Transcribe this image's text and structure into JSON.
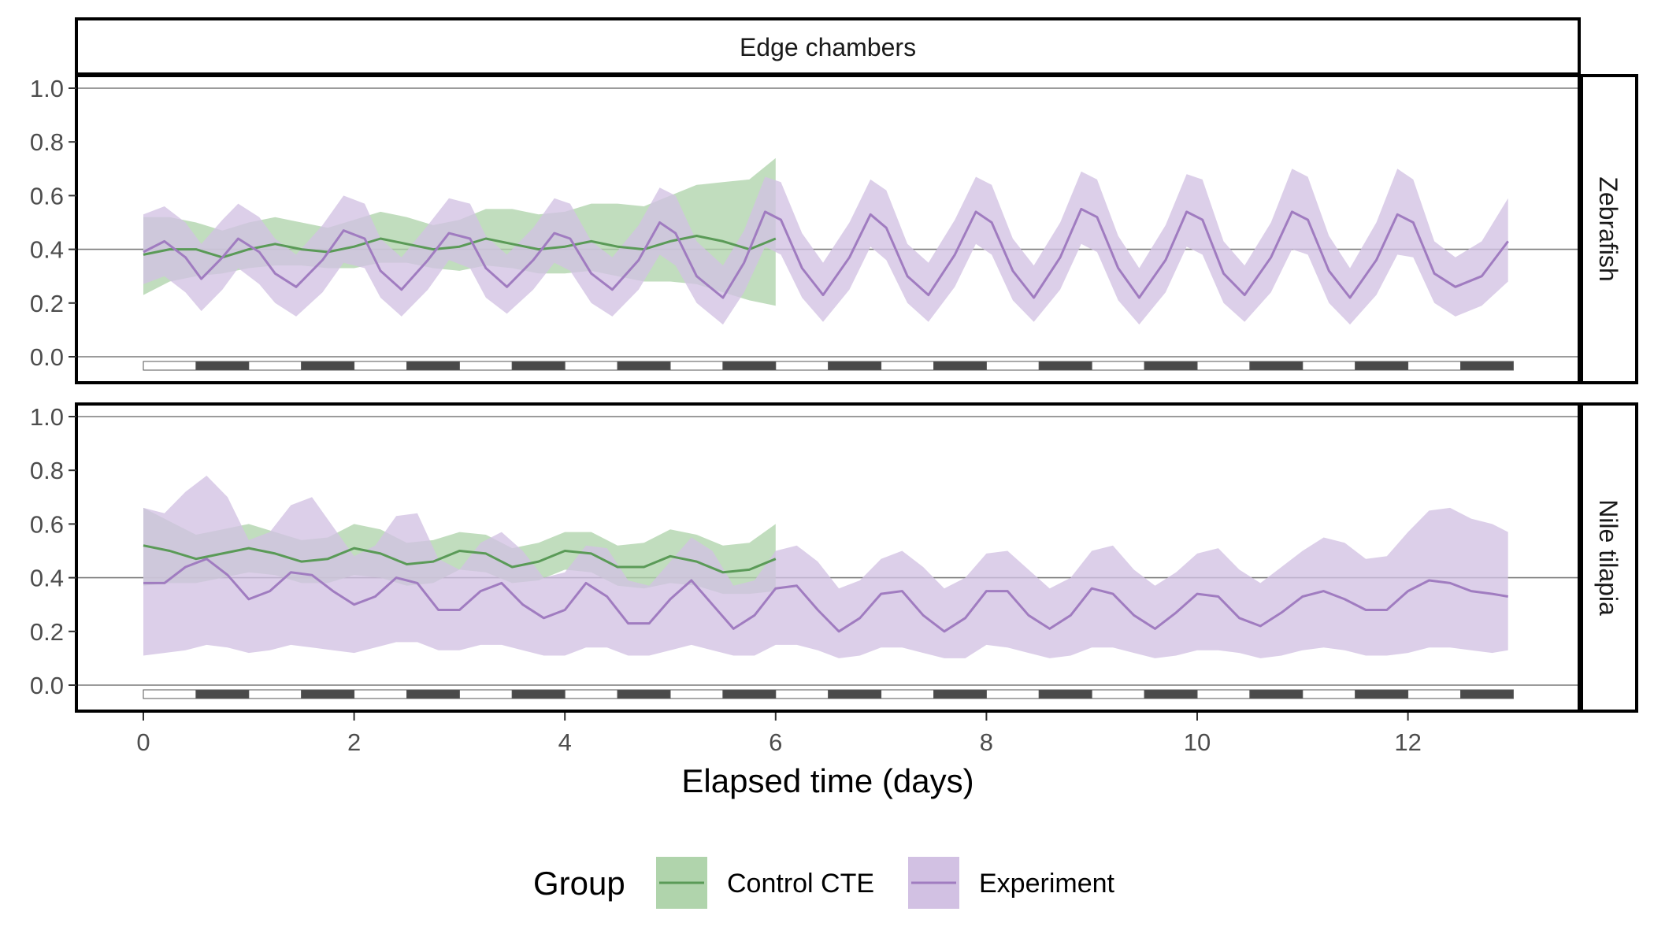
{
  "chart_data": {
    "type": "area",
    "title": "Edge chambers",
    "xlabel": "Elapsed time (days)",
    "ylabel": "",
    "xlim": [
      0,
      13
    ],
    "ylim": [
      0,
      1
    ],
    "x_ticks": [
      "0",
      "2",
      "4",
      "6",
      "8",
      "10",
      "12"
    ],
    "y_ticks": [
      "0.0",
      "0.2",
      "0.4",
      "0.6",
      "0.8",
      "1.0"
    ],
    "grid": "horizontal reference lines at 0.0, 0.4 and 1.0",
    "light_dark_bar": {
      "start_day": 0,
      "end_day": 13,
      "phase_length_days": 0.5,
      "first_phase": "light"
    },
    "legend": {
      "title": "Group",
      "position": "bottom",
      "entries": [
        {
          "label": "Control CTE",
          "line_color": "#5a9a57",
          "fill_color": "#b0d4ac"
        },
        {
          "label": "Experiment",
          "line_color": "#a07cc0",
          "fill_color": "#d2c1e3"
        }
      ]
    },
    "panels": [
      {
        "facet": "Zebrafish",
        "series": [
          {
            "name": "Control CTE",
            "x": [
              0,
              0.25,
              0.5,
              0.75,
              1.0,
              1.25,
              1.5,
              1.75,
              2.0,
              2.25,
              2.5,
              2.75,
              3.0,
              3.25,
              3.5,
              3.75,
              4.0,
              4.25,
              4.5,
              4.75,
              5.0,
              5.25,
              5.5,
              5.75,
              6.0
            ],
            "y": [
              0.38,
              0.4,
              0.4,
              0.37,
              0.4,
              0.42,
              0.4,
              0.39,
              0.41,
              0.44,
              0.42,
              0.4,
              0.41,
              0.44,
              0.42,
              0.4,
              0.41,
              0.43,
              0.41,
              0.4,
              0.43,
              0.45,
              0.43,
              0.4,
              0.44
            ],
            "lower": [
              0.23,
              0.28,
              0.3,
              0.31,
              0.33,
              0.34,
              0.34,
              0.33,
              0.33,
              0.35,
              0.35,
              0.33,
              0.32,
              0.34,
              0.33,
              0.31,
              0.31,
              0.32,
              0.3,
              0.28,
              0.28,
              0.27,
              0.24,
              0.21,
              0.19
            ],
            "upper": [
              0.52,
              0.52,
              0.5,
              0.47,
              0.5,
              0.52,
              0.5,
              0.48,
              0.51,
              0.54,
              0.52,
              0.49,
              0.51,
              0.55,
              0.55,
              0.53,
              0.54,
              0.57,
              0.57,
              0.56,
              0.6,
              0.64,
              0.65,
              0.66,
              0.74
            ]
          },
          {
            "name": "Experiment",
            "x": [
              0,
              0.2,
              0.4,
              0.55,
              0.75,
              0.9,
              1.1,
              1.25,
              1.45,
              1.7,
              1.9,
              2.1,
              2.25,
              2.45,
              2.7,
              2.9,
              3.1,
              3.25,
              3.45,
              3.7,
              3.9,
              4.05,
              4.25,
              4.45,
              4.7,
              4.9,
              5.05,
              5.25,
              5.5,
              5.7,
              5.9,
              6.05,
              6.25,
              6.45,
              6.7,
              6.9,
              7.05,
              7.25,
              7.45,
              7.7,
              7.9,
              8.05,
              8.25,
              8.45,
              8.7,
              8.9,
              9.05,
              9.25,
              9.45,
              9.7,
              9.9,
              10.05,
              10.25,
              10.45,
              10.7,
              10.9,
              11.05,
              11.25,
              11.45,
              11.7,
              11.9,
              12.05,
              12.25,
              12.45,
              12.7,
              12.95
            ],
            "y": [
              0.39,
              0.43,
              0.37,
              0.29,
              0.37,
              0.44,
              0.39,
              0.31,
              0.26,
              0.36,
              0.47,
              0.44,
              0.32,
              0.25,
              0.36,
              0.46,
              0.44,
              0.33,
              0.26,
              0.36,
              0.46,
              0.44,
              0.31,
              0.25,
              0.36,
              0.5,
              0.46,
              0.3,
              0.22,
              0.35,
              0.54,
              0.51,
              0.33,
              0.23,
              0.37,
              0.53,
              0.48,
              0.3,
              0.23,
              0.38,
              0.54,
              0.5,
              0.32,
              0.22,
              0.37,
              0.55,
              0.52,
              0.33,
              0.22,
              0.36,
              0.54,
              0.51,
              0.31,
              0.23,
              0.37,
              0.54,
              0.51,
              0.32,
              0.22,
              0.36,
              0.53,
              0.5,
              0.31,
              0.26,
              0.3,
              0.43
            ],
            "lower": [
              0.27,
              0.3,
              0.24,
              0.17,
              0.25,
              0.33,
              0.27,
              0.2,
              0.15,
              0.24,
              0.35,
              0.33,
              0.22,
              0.15,
              0.25,
              0.36,
              0.33,
              0.22,
              0.16,
              0.25,
              0.35,
              0.32,
              0.2,
              0.15,
              0.25,
              0.38,
              0.34,
              0.2,
              0.12,
              0.24,
              0.41,
              0.38,
              0.22,
              0.13,
              0.25,
              0.41,
              0.36,
              0.2,
              0.13,
              0.26,
              0.42,
              0.38,
              0.21,
              0.13,
              0.25,
              0.42,
              0.39,
              0.21,
              0.12,
              0.24,
              0.41,
              0.38,
              0.2,
              0.13,
              0.24,
              0.4,
              0.38,
              0.2,
              0.12,
              0.23,
              0.38,
              0.37,
              0.2,
              0.15,
              0.19,
              0.28
            ],
            "upper": [
              0.53,
              0.56,
              0.5,
              0.42,
              0.51,
              0.57,
              0.52,
              0.44,
              0.38,
              0.49,
              0.6,
              0.57,
              0.44,
              0.37,
              0.49,
              0.59,
              0.57,
              0.45,
              0.38,
              0.48,
              0.59,
              0.57,
              0.43,
              0.37,
              0.49,
              0.63,
              0.6,
              0.43,
              0.34,
              0.47,
              0.67,
              0.65,
              0.46,
              0.35,
              0.5,
              0.66,
              0.62,
              0.42,
              0.35,
              0.51,
              0.67,
              0.64,
              0.44,
              0.34,
              0.5,
              0.69,
              0.66,
              0.45,
              0.33,
              0.49,
              0.68,
              0.66,
              0.43,
              0.34,
              0.5,
              0.7,
              0.67,
              0.45,
              0.33,
              0.5,
              0.7,
              0.66,
              0.43,
              0.37,
              0.43,
              0.59
            ]
          }
        ]
      },
      {
        "facet": "Nile tilapia",
        "series": [
          {
            "name": "Control CTE",
            "x": [
              0,
              0.25,
              0.5,
              0.75,
              1.0,
              1.25,
              1.5,
              1.75,
              2.0,
              2.25,
              2.5,
              2.75,
              3.0,
              3.25,
              3.5,
              3.75,
              4.0,
              4.25,
              4.5,
              4.75,
              5.0,
              5.25,
              5.5,
              5.75,
              6.0
            ],
            "y": [
              0.52,
              0.5,
              0.47,
              0.49,
              0.51,
              0.49,
              0.46,
              0.47,
              0.51,
              0.49,
              0.45,
              0.46,
              0.5,
              0.49,
              0.44,
              0.46,
              0.5,
              0.49,
              0.44,
              0.44,
              0.48,
              0.46,
              0.42,
              0.43,
              0.47
            ],
            "lower": [
              0.37,
              0.38,
              0.38,
              0.4,
              0.42,
              0.41,
              0.38,
              0.38,
              0.41,
              0.4,
              0.37,
              0.38,
              0.43,
              0.42,
              0.38,
              0.39,
              0.43,
              0.42,
              0.37,
              0.36,
              0.38,
              0.37,
              0.34,
              0.34,
              0.35
            ],
            "upper": [
              0.66,
              0.61,
              0.56,
              0.58,
              0.6,
              0.57,
              0.54,
              0.55,
              0.6,
              0.58,
              0.53,
              0.54,
              0.57,
              0.56,
              0.51,
              0.53,
              0.57,
              0.57,
              0.52,
              0.53,
              0.58,
              0.56,
              0.52,
              0.53,
              0.6
            ]
          },
          {
            "name": "Experiment",
            "x": [
              0,
              0.2,
              0.4,
              0.6,
              0.8,
              1.0,
              1.2,
              1.4,
              1.6,
              1.8,
              2.0,
              2.2,
              2.4,
              2.6,
              2.8,
              3.0,
              3.2,
              3.4,
              3.6,
              3.8,
              4.0,
              4.2,
              4.4,
              4.6,
              4.8,
              5.0,
              5.2,
              5.4,
              5.6,
              5.8,
              6.0,
              6.2,
              6.4,
              6.6,
              6.8,
              7.0,
              7.2,
              7.4,
              7.6,
              7.8,
              8.0,
              8.2,
              8.4,
              8.6,
              8.8,
              9.0,
              9.2,
              9.4,
              9.6,
              9.8,
              10.0,
              10.2,
              10.4,
              10.6,
              10.8,
              11.0,
              11.2,
              11.4,
              11.6,
              11.8,
              12.0,
              12.2,
              12.4,
              12.6,
              12.8,
              12.95
            ],
            "y": [
              0.38,
              0.38,
              0.44,
              0.47,
              0.41,
              0.32,
              0.35,
              0.42,
              0.41,
              0.35,
              0.3,
              0.33,
              0.4,
              0.38,
              0.28,
              0.28,
              0.35,
              0.38,
              0.3,
              0.25,
              0.28,
              0.38,
              0.33,
              0.23,
              0.23,
              0.32,
              0.39,
              0.3,
              0.21,
              0.26,
              0.36,
              0.37,
              0.28,
              0.2,
              0.25,
              0.34,
              0.35,
              0.26,
              0.2,
              0.25,
              0.35,
              0.35,
              0.26,
              0.21,
              0.26,
              0.36,
              0.34,
              0.26,
              0.21,
              0.27,
              0.34,
              0.33,
              0.25,
              0.22,
              0.27,
              0.33,
              0.35,
              0.32,
              0.28,
              0.28,
              0.35,
              0.39,
              0.38,
              0.35,
              0.34,
              0.33
            ],
            "lower": [
              0.11,
              0.12,
              0.13,
              0.15,
              0.14,
              0.12,
              0.13,
              0.15,
              0.14,
              0.13,
              0.12,
              0.14,
              0.16,
              0.16,
              0.13,
              0.13,
              0.15,
              0.15,
              0.13,
              0.11,
              0.11,
              0.14,
              0.14,
              0.11,
              0.11,
              0.13,
              0.15,
              0.13,
              0.11,
              0.11,
              0.15,
              0.15,
              0.13,
              0.1,
              0.11,
              0.14,
              0.14,
              0.12,
              0.1,
              0.1,
              0.15,
              0.14,
              0.12,
              0.1,
              0.11,
              0.14,
              0.14,
              0.12,
              0.1,
              0.11,
              0.13,
              0.13,
              0.12,
              0.1,
              0.11,
              0.13,
              0.14,
              0.13,
              0.11,
              0.11,
              0.12,
              0.14,
              0.14,
              0.13,
              0.12,
              0.13
            ],
            "upper": [
              0.66,
              0.64,
              0.72,
              0.78,
              0.7,
              0.54,
              0.57,
              0.67,
              0.7,
              0.59,
              0.48,
              0.52,
              0.63,
              0.64,
              0.47,
              0.43,
              0.53,
              0.57,
              0.5,
              0.4,
              0.42,
              0.52,
              0.51,
              0.39,
              0.37,
              0.46,
              0.55,
              0.5,
              0.37,
              0.39,
              0.5,
              0.52,
              0.46,
              0.36,
              0.39,
              0.47,
              0.5,
              0.44,
              0.36,
              0.4,
              0.49,
              0.5,
              0.43,
              0.36,
              0.4,
              0.5,
              0.52,
              0.43,
              0.37,
              0.42,
              0.49,
              0.51,
              0.43,
              0.38,
              0.44,
              0.5,
              0.55,
              0.53,
              0.47,
              0.48,
              0.57,
              0.65,
              0.66,
              0.62,
              0.6,
              0.57
            ]
          }
        ]
      }
    ]
  }
}
